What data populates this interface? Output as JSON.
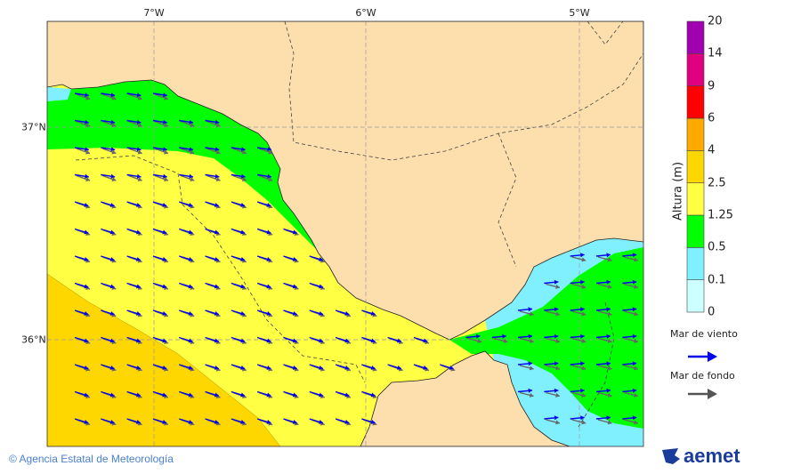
{
  "map": {
    "lon_labels": [
      "7°W",
      "6°W",
      "5°W"
    ],
    "lat_labels": [
      "37°N",
      "36°N"
    ],
    "colors": {
      "land": "#fddfae",
      "border": "#444444",
      "wind_sea_arrow": "#0000ee",
      "swell_arrow": "#666666"
    }
  },
  "colorbar": {
    "title": "Altura (m)",
    "ticks": [
      "0",
      "0.1",
      "0.5",
      "1.25",
      "2.5",
      "4",
      "6",
      "9",
      "14",
      "20"
    ],
    "colors": [
      "#ccffff",
      "#80f0ff",
      "#00ff00",
      "#ffff44",
      "#ffd700",
      "#ffaa00",
      "#ff0000",
      "#e0007f",
      "#a000b0"
    ]
  },
  "legend": {
    "wind_sea": "Mar de viento",
    "swell": "Mar de fondo"
  },
  "footer": {
    "copyright": "© Agencia Estatal de Meteorología",
    "logo_text": "aemet"
  }
}
